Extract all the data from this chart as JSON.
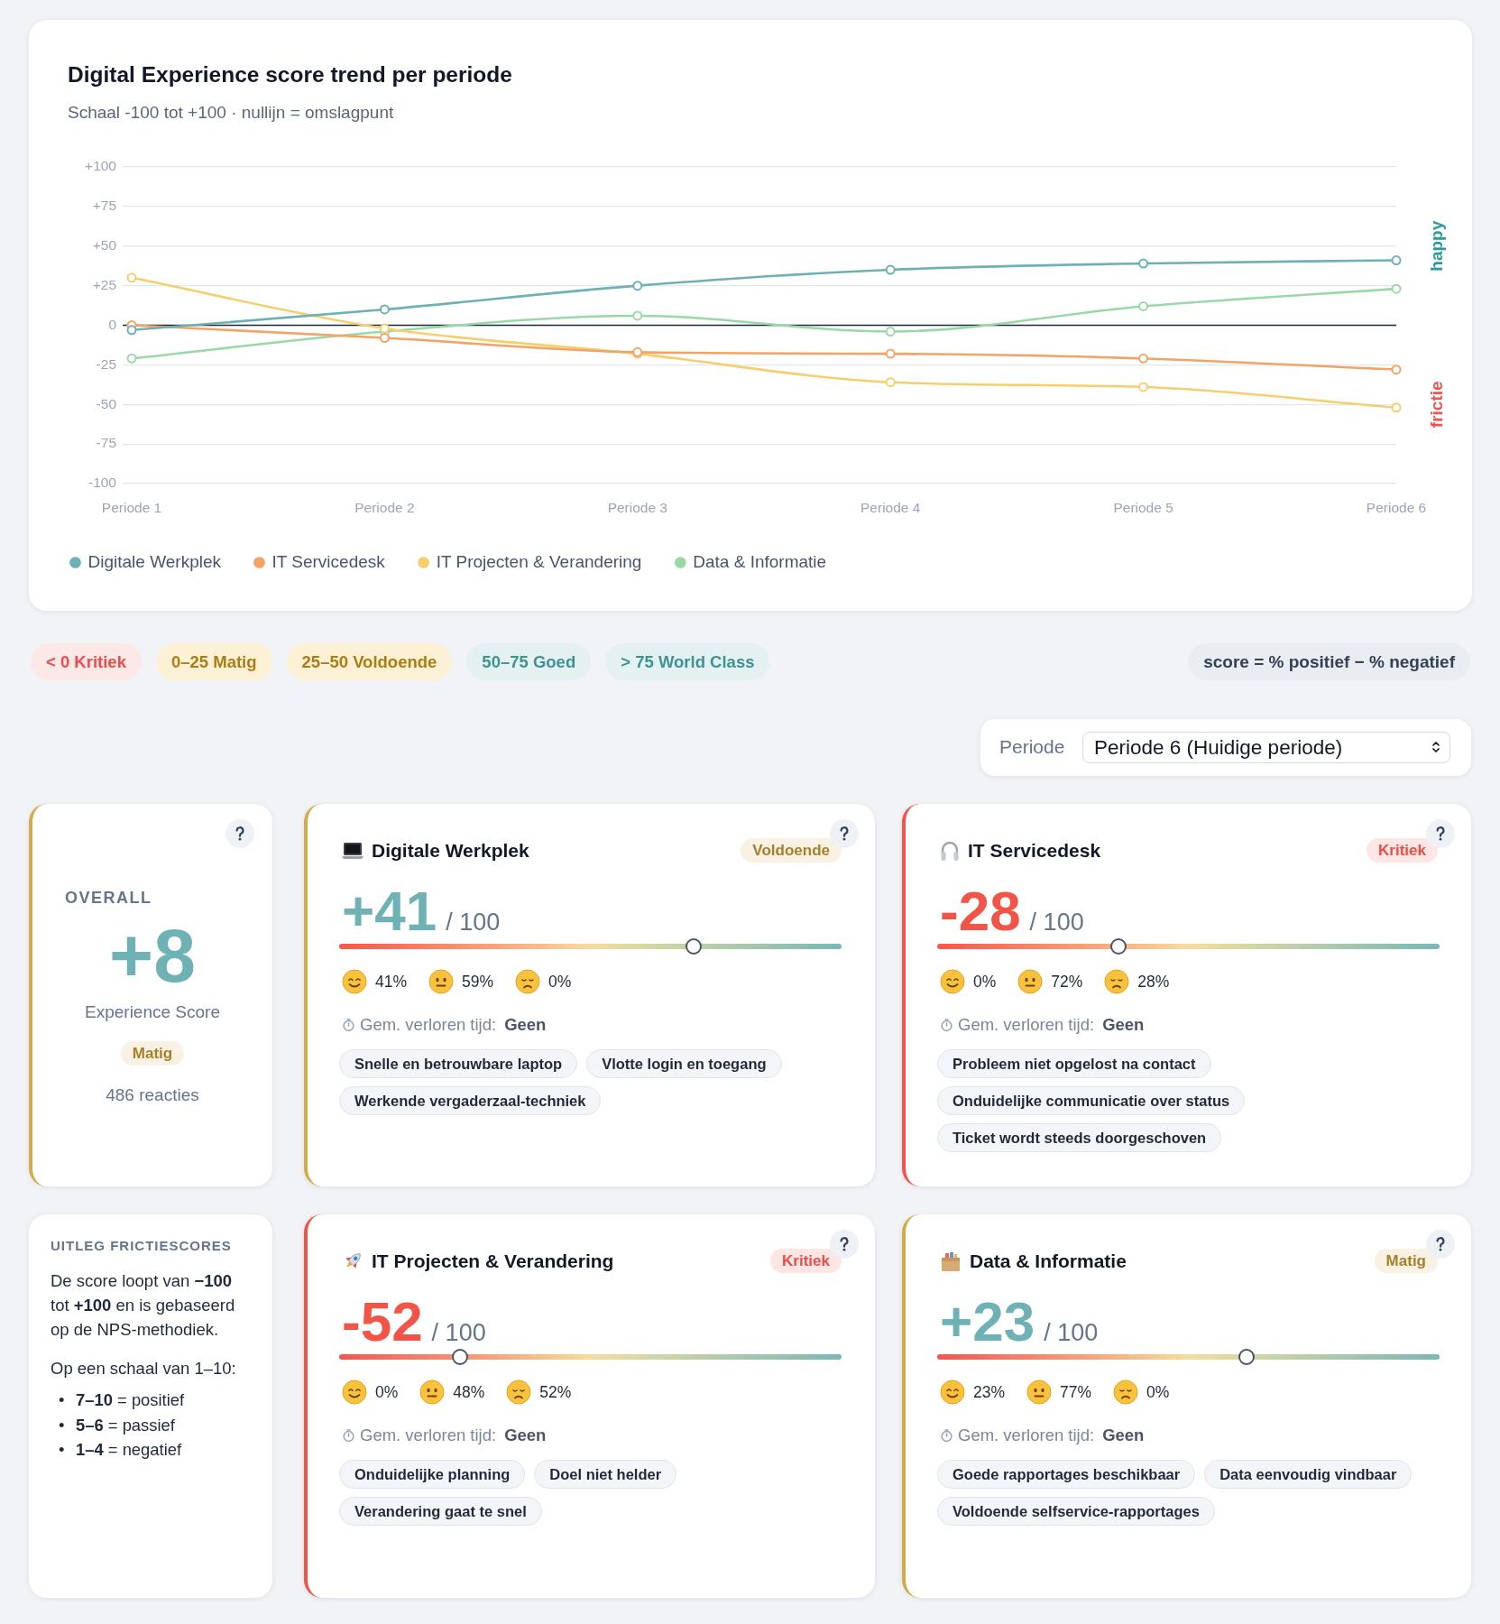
{
  "chart_data": [
    {
      "type": "line",
      "title": "Digital Experience score trend per periode",
      "subtitle": "Schaal -100 tot +100 · nullijn = omslagpunt",
      "categories": [
        "Periode 1",
        "Periode 2",
        "Periode 3",
        "Periode 4",
        "Periode 5",
        "Periode 6"
      ],
      "series": [
        {
          "name": "Digitale Werkplek",
          "color": "#6fb0b4",
          "values": [
            -3,
            10,
            25,
            35,
            39,
            41
          ]
        },
        {
          "name": "IT Servicedesk",
          "color": "#f4a366",
          "values": [
            0,
            -8,
            -17,
            -18,
            -21,
            -28
          ]
        },
        {
          "name": "IT Projecten & Verandering",
          "color": "#f5cf6e",
          "values": [
            30,
            -2,
            -18,
            -36,
            -39,
            -52
          ]
        },
        {
          "name": "Data & Informatie",
          "color": "#9ad8a8",
          "values": [
            -21,
            -4,
            6,
            -4,
            12,
            23
          ]
        }
      ],
      "ylim": [
        -100,
        100
      ],
      "yticks": [
        -100,
        -75,
        -50,
        -25,
        0,
        {
          "value": 25,
          "label": "+25"
        },
        {
          "value": 50,
          "label": "+50"
        },
        {
          "value": 75,
          "label": "+75"
        },
        {
          "value": 100,
          "label": "+100"
        }
      ],
      "grid": "y",
      "legend": "bottom left",
      "marker": "circle",
      "ref_lines": [
        {
          "axis": "y",
          "value": 0,
          "color": "#1e293b"
        }
      ],
      "annotations": [
        "happy",
        "frictie"
      ]
    },
    {
      "type": "other",
      "categories": [
        "< 0 Kritiek",
        "0–25 Matig",
        "25–50 Voldoende",
        "50–75 Goed",
        "> 75 World Class"
      ],
      "colors": [
        "#fde8e8",
        "#fdf1d5",
        "#fdf1d5",
        "#e5f1f1",
        "#e5f1f1"
      ],
      "annotations": [
        "score = % positief − % negatief"
      ]
    },
    {
      "type": "other",
      "annotations": [
        "Periode",
        "Periode 6 (Huidige periode)"
      ]
    },
    {
      "type": "other",
      "title": "OVERALL",
      "annotations": [
        "+8",
        "Experience Score",
        "Matig",
        "486 reacties"
      ]
    },
    {
      "type": "other",
      "title": "Digitale Werkplek",
      "values": [
        41
      ],
      "value_labels": [
        "+41"
      ],
      "annotations": [
        "Voldoende",
        "/ 100",
        "41%",
        "59%",
        "0%",
        "Gem. verloren tijd:",
        "Geen",
        "Snelle en betrouwbare laptop",
        "Vlotte login en toegang",
        "Werkende vergaderzaal-techniek"
      ]
    },
    {
      "type": "other",
      "title": "IT Servicedesk",
      "values": [
        -28
      ],
      "value_labels": [
        "-28"
      ],
      "annotations": [
        "Kritiek",
        "/ 100",
        "0%",
        "72%",
        "28%",
        "Gem. verloren tijd:",
        "Geen",
        "Probleem niet opgelost na contact",
        "Onduidelijke communicatie over status",
        "Ticket wordt steeds doorgeschoven"
      ]
    },
    {
      "type": "other",
      "title": "UITLEG FRICTIESCORES",
      "annotations": [
        "De score loopt van −100 tot +100 en is gebaseerd op de NPS-methodiek.",
        "Op een schaal van 1–10:",
        "• 7–10 = positief",
        "• 5–6 = passief",
        "• 1–4 = negatief"
      ]
    },
    {
      "type": "other",
      "title": "IT Projecten & Verandering",
      "values": [
        -52
      ],
      "value_labels": [
        "-52"
      ],
      "annotations": [
        "Kritiek",
        "/ 100",
        "0%",
        "48%",
        "52%",
        "Gem. verloren tijd:",
        "Geen",
        "Onduidelijke planning",
        "Doel niet helder",
        "Verandering gaat te snel"
      ]
    },
    {
      "type": "other",
      "title": "Data & Informatie",
      "values": [
        23
      ],
      "value_labels": [
        "+23"
      ],
      "annotations": [
        "Matig",
        "/ 100",
        "23%",
        "77%",
        "0%",
        "Gem. verloren tijd:",
        "Geen",
        "Goede rapportages beschikbaar",
        "Data eenvoudig vindbaar",
        "Voldoende selfservice-rapportages"
      ]
    }
  ]
}
